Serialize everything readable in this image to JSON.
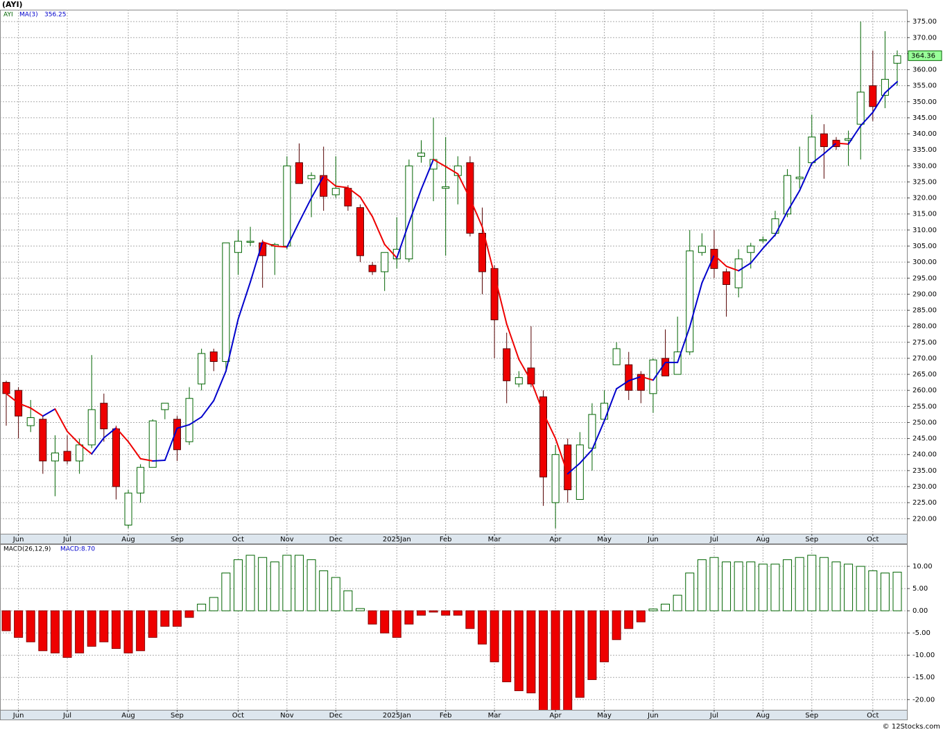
{
  "chart_data": [
    {
      "type": "candlestick",
      "title": "(AYI)",
      "symbol": "AYI",
      "categories": [
        null,
        "Jun",
        null,
        null,
        null,
        "Jul",
        null,
        null,
        null,
        null,
        "Aug",
        null,
        null,
        null,
        "Sep",
        null,
        null,
        null,
        null,
        "Oct",
        null,
        null,
        null,
        "Nov",
        null,
        null,
        null,
        "Dec",
        null,
        null,
        null,
        null,
        "2025Jan",
        null,
        null,
        null,
        "Feb",
        null,
        null,
        null,
        "Mar",
        null,
        null,
        null,
        null,
        "Apr",
        null,
        null,
        null,
        "May",
        null,
        null,
        null,
        "Jun",
        null,
        null,
        null,
        null,
        "Jul",
        null,
        null,
        null,
        "Aug",
        null,
        null,
        null,
        "Sep",
        null,
        null,
        null,
        null,
        "Oct",
        null,
        null
      ],
      "open": [
        262.5,
        260,
        249,
        251,
        238,
        241,
        238,
        243,
        256,
        248,
        218,
        228,
        236,
        254,
        251,
        244,
        262,
        272,
        269,
        303,
        306.5,
        306,
        305,
        305,
        331,
        326,
        327,
        321,
        323,
        317,
        299,
        297,
        301,
        301,
        333,
        329,
        323,
        327,
        331,
        309,
        298,
        273,
        262,
        267,
        258,
        225,
        243,
        226,
        242,
        251,
        268,
        268,
        265,
        259,
        270,
        265,
        272,
        303,
        304,
        297,
        292,
        303,
        307,
        309,
        315,
        326,
        331,
        340,
        338,
        338,
        343,
        355,
        352,
        362
      ],
      "high": [
        263,
        261,
        257,
        252,
        246,
        246,
        245,
        271,
        259,
        249,
        229,
        237,
        251,
        256,
        252,
        261,
        273,
        273,
        306,
        310,
        311,
        307,
        306,
        333,
        337,
        328,
        336,
        333,
        324,
        318,
        300,
        303,
        314,
        332,
        338,
        345,
        339,
        333,
        333,
        317,
        299,
        278,
        266,
        280,
        260,
        243,
        245,
        247,
        256,
        260,
        275,
        272,
        266,
        270,
        279,
        283,
        310,
        309,
        310,
        298,
        304,
        306,
        308,
        316,
        329,
        336,
        346,
        343,
        339,
        341,
        375,
        366,
        372,
        366
      ],
      "low": [
        249,
        245,
        247,
        234,
        227,
        237,
        234,
        242,
        244,
        226,
        217,
        225,
        236,
        251,
        238,
        243,
        260,
        266,
        266,
        296,
        305,
        292,
        296,
        304,
        325,
        314,
        316,
        320,
        316,
        300,
        296,
        291,
        298,
        300,
        331,
        319,
        302,
        318,
        308,
        290,
        270,
        256,
        261,
        261,
        224,
        217,
        225,
        226,
        235,
        251,
        268,
        257,
        256,
        253,
        265,
        265,
        271,
        302,
        295,
        283,
        289,
        298,
        306,
        308,
        314,
        323,
        330,
        326,
        335,
        330,
        332,
        344,
        348,
        355
      ],
      "close": [
        259,
        252,
        251.5,
        238,
        240.5,
        238,
        243,
        254,
        248,
        230,
        228,
        236,
        250.5,
        256,
        241.5,
        257.5,
        271.5,
        269,
        306,
        306.5,
        306.5,
        302,
        305.5,
        330,
        324.5,
        327,
        320.5,
        323,
        317.5,
        302,
        297,
        303,
        304,
        330,
        334,
        332,
        323.5,
        330,
        309,
        297,
        282,
        263,
        264,
        262,
        233,
        240,
        229,
        243,
        252.5,
        256,
        273,
        260,
        260,
        269.5,
        264.5,
        272,
        303.5,
        305,
        298,
        293,
        301,
        305,
        307,
        313.5,
        327,
        326.5,
        339,
        336,
        336,
        338.5,
        353,
        348.5,
        357,
        364.36
      ],
      "up_color": "#006400",
      "down_color": "#ee0000",
      "ma": {
        "name": "MA(3)",
        "up_color": "#0000cc",
        "down_color": "#ee0000",
        "values": [
          259,
          256,
          254.5,
          252,
          254.2,
          247.2,
          243.3,
          240.2,
          245.2,
          248.3,
          244,
          238.7,
          238,
          238.2,
          248.2,
          249.3,
          251.7,
          256.8,
          266,
          282.2,
          293.8,
          306.3,
          305,
          304.7,
          312.5,
          320,
          326.8,
          323.7,
          323.2,
          320.3,
          314.2,
          305.5,
          301.3,
          312.3,
          322.7,
          332,
          329.8,
          327.5,
          319.8,
          311,
          296,
          280.7,
          269.7,
          263,
          253,
          245,
          234,
          237.3,
          241.5,
          250.5,
          260.5,
          263,
          264.3,
          263.2,
          268.7,
          268.7,
          279.8,
          293.5,
          302.2,
          298.7,
          297.3,
          299.7,
          304.3,
          308.5,
          315.8,
          322.3,
          330.8,
          333.8,
          337.1,
          336.8,
          342.5,
          346.7,
          352.8,
          356.25
        ]
      },
      "ylim": [
        215.3,
        378.7
      ],
      "yticks": [
        {
          "value": 220,
          "label": "220.00"
        },
        {
          "value": 225,
          "label": "225.00"
        },
        {
          "value": 230,
          "label": "230.00"
        },
        {
          "value": 235,
          "label": "235.00"
        },
        {
          "value": 240,
          "label": "240.00"
        },
        {
          "value": 245,
          "label": "245.00"
        },
        {
          "value": 250,
          "label": "250.00"
        },
        {
          "value": 255,
          "label": "255.00"
        },
        {
          "value": 260,
          "label": "260.00"
        },
        {
          "value": 265,
          "label": "265.00"
        },
        {
          "value": 270,
          "label": "270.00"
        },
        {
          "value": 275,
          "label": "275.00"
        },
        {
          "value": 280,
          "label": "280.00"
        },
        {
          "value": 285,
          "label": "285.00"
        },
        {
          "value": 290,
          "label": "290.00"
        },
        {
          "value": 295,
          "label": "295.00"
        },
        {
          "value": 300,
          "label": "300.00"
        },
        {
          "value": 305,
          "label": "305.00"
        },
        {
          "value": 310,
          "label": "310.00"
        },
        {
          "value": 315,
          "label": "315.00"
        },
        {
          "value": 320,
          "label": "320.00"
        },
        {
          "value": 325,
          "label": "325.00"
        },
        {
          "value": 330,
          "label": "330.00"
        },
        {
          "value": 335,
          "label": "335.00"
        },
        {
          "value": 340,
          "label": "340.00"
        },
        {
          "value": 345,
          "label": "345.00"
        },
        {
          "value": 350,
          "label": "350.00"
        },
        {
          "value": 355,
          "label": "355.00"
        },
        {
          "value": 360,
          "label": "360.00"
        },
        {
          "value": 365,
          "label": "365.00"
        },
        {
          "value": 370,
          "label": "370.00"
        },
        {
          "value": 375,
          "label": "375.00"
        }
      ],
      "grid": true
    },
    {
      "type": "bar",
      "title": "MACD(26,12,9)",
      "value_label": "MACD:8.70",
      "values": [
        -4.5,
        -6,
        -7,
        -9,
        -9.5,
        -10.5,
        -9.5,
        -8,
        -7,
        -8.5,
        -9.5,
        -9,
        -6,
        -3.5,
        -3.5,
        -1.5,
        1.5,
        3,
        8.5,
        11.5,
        12.5,
        12,
        11,
        12.5,
        12.5,
        11.5,
        9,
        7.5,
        4.5,
        0.5,
        -3,
        -5,
        -6,
        -3,
        -1,
        -0.3,
        -1,
        -1,
        -4,
        -7.5,
        -11.5,
        -16,
        -18,
        -18.5,
        -22.5,
        -23,
        -22.5,
        -19.5,
        -15.5,
        -11.5,
        -6.5,
        -4,
        -2.5,
        0.4,
        1.5,
        3.5,
        8.5,
        11.5,
        12,
        11,
        11,
        11,
        10.5,
        10.5,
        11.5,
        12,
        12.5,
        12,
        11,
        10.5,
        10,
        9,
        8.5,
        8.7
      ],
      "up_color": "#006400",
      "down_color": "#ee0000",
      "ylim": [
        -22.3,
        15
      ],
      "yticks": [
        {
          "value": 10,
          "label": "10.00"
        },
        {
          "value": 5,
          "label": "5.00"
        },
        {
          "value": 0,
          "label": "0.00"
        },
        {
          "value": -5,
          "label": "-5.00"
        },
        {
          "value": -10,
          "label": "-10.00"
        },
        {
          "value": -15,
          "label": "-15.00"
        },
        {
          "value": -20,
          "label": "-20.00"
        }
      ],
      "grid": true
    }
  ],
  "footer": "© 12Stocks.com"
}
